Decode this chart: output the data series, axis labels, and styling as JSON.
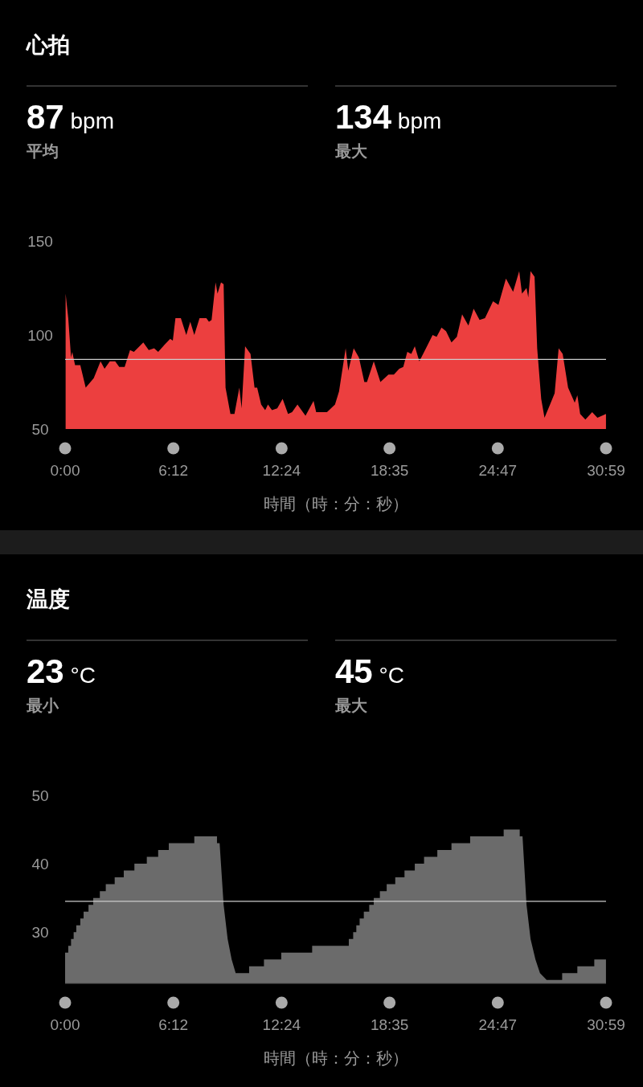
{
  "chart_data": [
    {
      "type": "area",
      "title": "心拍",
      "annotations": [
        "87 bpm",
        "平均",
        "134 bpm",
        "最大"
      ],
      "xlabel": "時間（時：分：秒）",
      "color": "#ec3f3f",
      "x": [
        0.03,
        0.18,
        0.34,
        0.41,
        0.57,
        0.87,
        1.18,
        1.64,
        2.03,
        2.26,
        2.56,
        2.87,
        3.1,
        3.41,
        3.72,
        3.94,
        4.48,
        4.79,
        5.1,
        5.33,
        5.71,
        6.02,
        6.17,
        6.32,
        6.63,
        6.94,
        7.17,
        7.4,
        7.7,
        8.09,
        8.24,
        8.39,
        8.62,
        8.73,
        8.93,
        9.08,
        9.19,
        9.47,
        9.7,
        9.98,
        10.11,
        10.31,
        10.62,
        10.85,
        11.0,
        11.23,
        11.46,
        11.62,
        11.85,
        12.15,
        12.46,
        12.77,
        13.0,
        13.31,
        13.77,
        14.23,
        14.38,
        15.0,
        15.46,
        15.69,
        16.07,
        16.22,
        16.53,
        16.83,
        17.14,
        17.29,
        17.68,
        18.06,
        18.52,
        18.83,
        19.14,
        19.37,
        19.6,
        19.83,
        20.03,
        20.29,
        20.67,
        21.05,
        21.28,
        21.56,
        21.82,
        22.13,
        22.44,
        22.74,
        23.1,
        23.4,
        23.74,
        24.05,
        24.51,
        24.82,
        25.25,
        25.66,
        26.01,
        26.17,
        26.43,
        26.53,
        26.66,
        26.89,
        27.04,
        27.27,
        27.46,
        27.73,
        28.04,
        28.27,
        28.5,
        28.81,
        29.19,
        29.34,
        29.5,
        29.8,
        30.19,
        30.49,
        30.98
      ],
      "values": [
        122,
        109,
        88,
        91,
        84,
        84,
        72,
        77,
        86,
        82,
        86,
        86,
        83,
        83,
        92,
        91,
        96,
        92,
        93,
        91,
        95,
        98,
        97,
        109,
        109,
        100,
        107,
        100,
        109,
        109,
        107,
        108,
        128,
        122,
        128,
        127,
        72,
        58,
        58,
        72,
        61,
        94,
        90,
        72,
        72,
        63,
        60,
        63,
        60,
        61,
        66,
        58,
        59,
        63,
        57,
        65,
        59,
        59,
        63,
        70,
        93,
        81,
        93,
        88,
        75,
        75,
        86,
        75,
        79,
        79,
        82,
        83,
        91,
        90,
        94,
        86,
        93,
        100,
        99,
        104,
        102,
        96,
        99,
        111,
        105,
        114,
        108,
        109,
        118,
        116,
        130,
        123,
        134,
        122,
        125,
        120,
        134,
        131,
        93,
        66,
        56,
        62,
        69,
        93,
        90,
        72,
        64,
        68,
        58,
        55,
        59,
        56,
        58
      ],
      "xlim": [
        0,
        30.983
      ],
      "ylim": [
        50,
        150
      ],
      "yticks": [
        50,
        100,
        150
      ],
      "xticks": [
        {
          "value": 0,
          "label": "0:00"
        },
        {
          "value": 6.2,
          "label": "6:12"
        },
        {
          "value": 12.4,
          "label": "12:24"
        },
        {
          "value": 18.583,
          "label": "18:35"
        },
        {
          "value": 24.783,
          "label": "24:47"
        },
        {
          "value": 30.983,
          "label": "30:59"
        }
      ],
      "ref_lines": [
        {
          "axis": "y",
          "value": 87,
          "color": "#cccccc"
        }
      ]
    },
    {
      "type": "area",
      "title": "温度",
      "annotations": [
        "23 °C",
        "最小",
        "45 °C",
        "最大"
      ],
      "xlabel": "時間（時：分：秒）",
      "color": "#6b6b6b",
      "x": [
        0,
        0.18,
        0.18,
        0.34,
        0.34,
        0.49,
        0.49,
        0.64,
        0.64,
        0.87,
        0.87,
        1.06,
        1.06,
        1.34,
        1.34,
        1.61,
        1.61,
        1.99,
        1.99,
        2.33,
        2.33,
        2.84,
        2.84,
        3.36,
        3.36,
        3.97,
        3.97,
        4.68,
        4.68,
        5.33,
        5.33,
        5.94,
        5.94,
        7.4,
        7.4,
        8.7,
        8.7,
        8.85,
        9.08,
        9.31,
        9.54,
        9.77,
        10.54,
        10.54,
        11.39,
        11.39,
        12.38,
        12.38,
        14.15,
        14.15,
        16.25,
        16.25,
        16.5,
        16.5,
        16.68,
        16.68,
        16.87,
        16.87,
        17.11,
        17.11,
        17.42,
        17.42,
        17.68,
        17.68,
        18.03,
        18.03,
        18.42,
        18.42,
        18.91,
        18.91,
        19.44,
        19.44,
        20.03,
        20.03,
        20.56,
        20.56,
        21.32,
        21.32,
        22.13,
        22.13,
        23.2,
        23.2,
        25.12,
        25.12,
        26.04,
        26.04,
        26.2,
        26.43,
        26.66,
        26.94,
        27.2,
        27.58,
        28.47,
        28.47,
        29.34,
        29.34,
        30.31,
        30.31,
        30.98
      ],
      "values": [
        27,
        27,
        28,
        28,
        29,
        29,
        30,
        30,
        31,
        31,
        32,
        32,
        33,
        33,
        34,
        34,
        35,
        35,
        36,
        36,
        37,
        37,
        38,
        38,
        39,
        39,
        40,
        40,
        41,
        41,
        42,
        42,
        43,
        43,
        44,
        44,
        43,
        43,
        34,
        29,
        26,
        24,
        24,
        25,
        25,
        26,
        26,
        27,
        27,
        28,
        28,
        29,
        29,
        30,
        30,
        31,
        31,
        32,
        32,
        33,
        33,
        34,
        34,
        35,
        35,
        36,
        36,
        37,
        37,
        38,
        38,
        39,
        39,
        40,
        40,
        41,
        41,
        42,
        42,
        43,
        43,
        44,
        44,
        45,
        45,
        44,
        44,
        34,
        29,
        26,
        24,
        23,
        23,
        24,
        24,
        25,
        25,
        26,
        26
      ],
      "xlim": [
        0,
        30.983
      ],
      "ylim": [
        22.5,
        50
      ],
      "yticks": [
        30,
        40,
        50
      ],
      "xticks": [
        {
          "value": 0,
          "label": "0:00"
        },
        {
          "value": 6.2,
          "label": "6:12"
        },
        {
          "value": 12.4,
          "label": "12:24"
        },
        {
          "value": 18.583,
          "label": "18:35"
        },
        {
          "value": 24.783,
          "label": "24:47"
        },
        {
          "value": 30.983,
          "label": "30:59"
        }
      ],
      "ref_lines": [
        {
          "axis": "y",
          "value": 34.5,
          "color": "#cccccc"
        }
      ]
    }
  ]
}
